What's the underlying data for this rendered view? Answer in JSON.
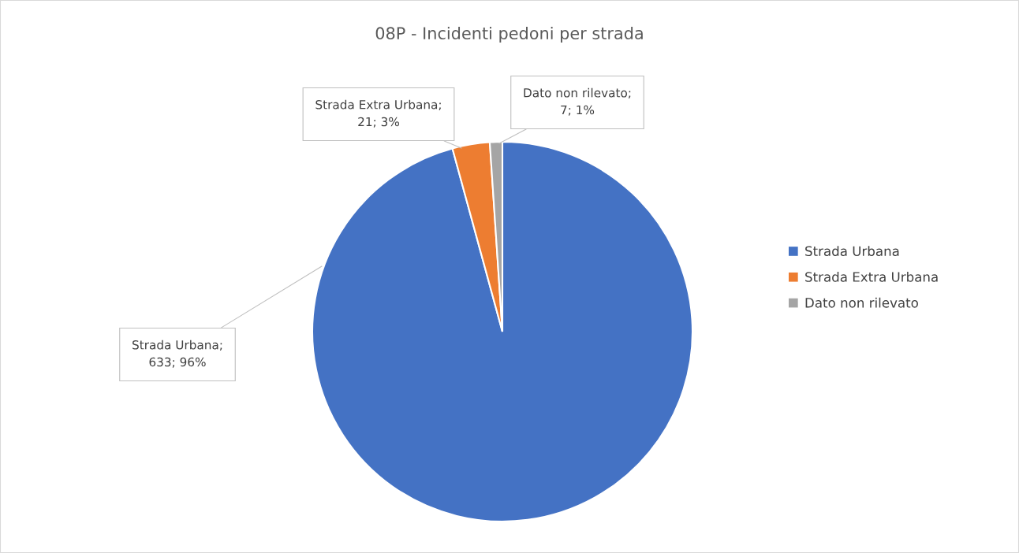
{
  "chart_data": {
    "type": "pie",
    "title": "08P - Incidenti pedoni per strada",
    "categories": [
      "Strada Urbana",
      "Strada Extra Urbana",
      "Dato non rilevato"
    ],
    "values": [
      633,
      21,
      7
    ],
    "colors": [
      "#4472c4",
      "#ed7d31",
      "#a5a5a5"
    ],
    "value_labels": [
      "Strada Urbana;\n633; 96%",
      "Strada Extra Urbana;\n21; 3%",
      "Dato non rilevato;\n7; 1%"
    ],
    "legend": "right"
  }
}
